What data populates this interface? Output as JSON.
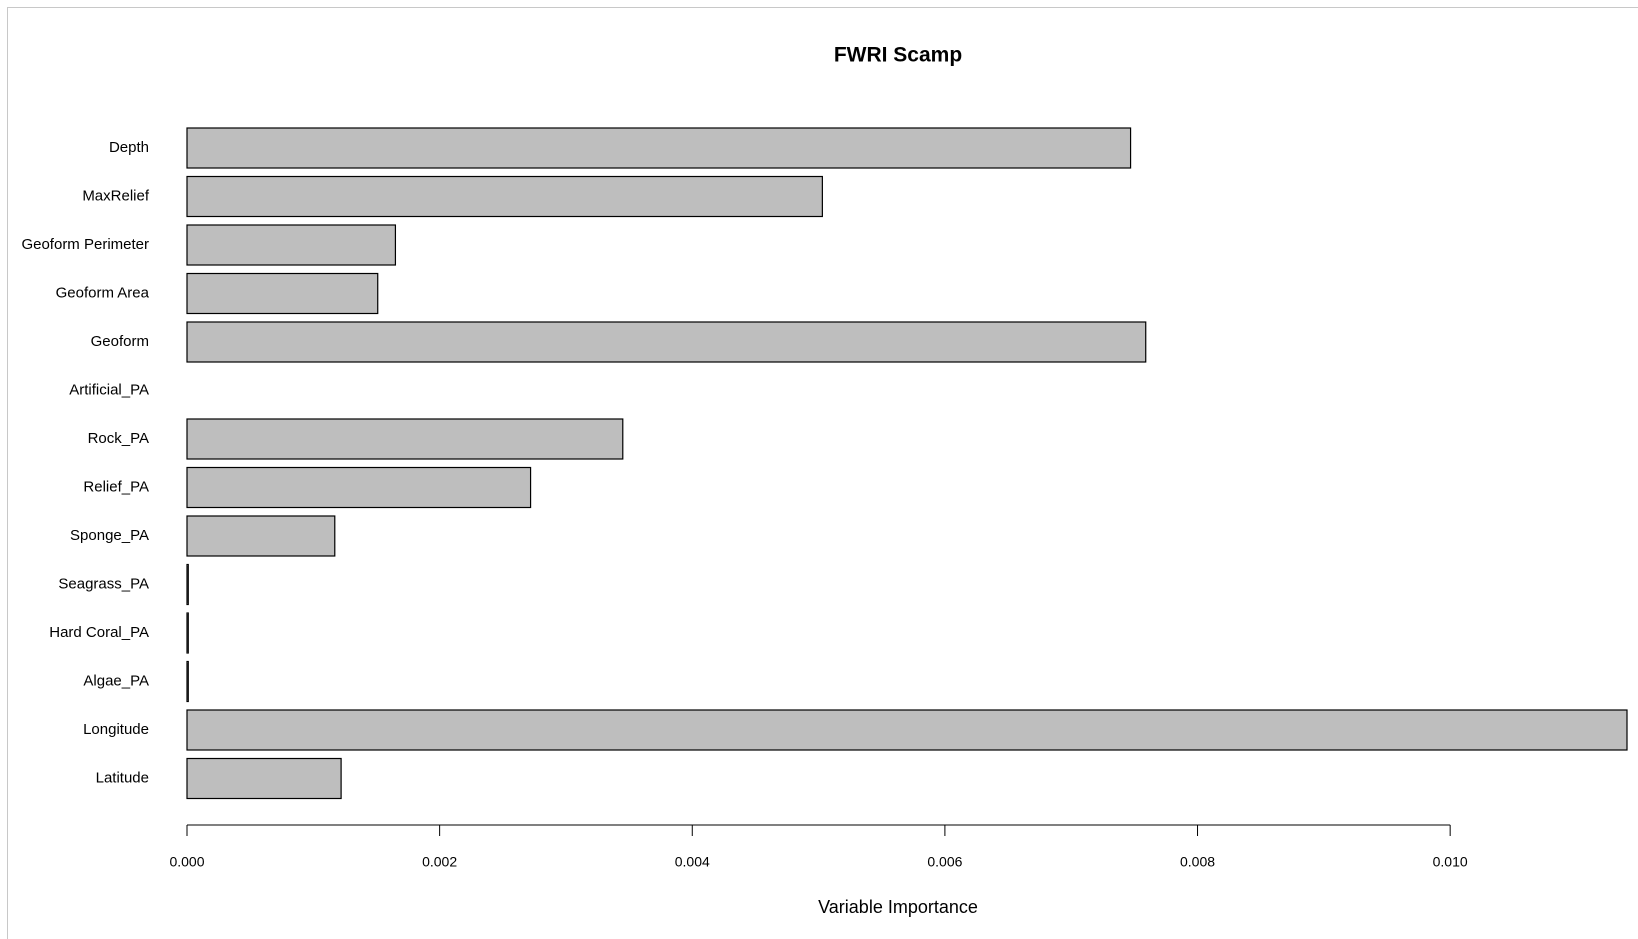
{
  "chart_data": {
    "type": "barh",
    "title": "FWRI Scamp",
    "x_label": "Variable Importance",
    "categories": [
      "Depth",
      "MaxRelief",
      "Geoform Perimeter",
      "Geoform Area",
      "Geoform",
      "Artificial_PA",
      "Rock_PA",
      "Relief_PA",
      "Sponge_PA",
      "Seagrass_PA",
      "Hard Coral_PA",
      "Algae_PA",
      "Longitude",
      "Latitude"
    ],
    "values": [
      0.00747,
      0.00503,
      0.00165,
      0.00151,
      0.00759,
      0,
      0.00345,
      0.00272,
      0.00117,
      1e-05,
      1e-05,
      1e-05,
      0.0114,
      0.00122
    ],
    "color": "#bebebe",
    "xlim": [
      0,
      0.0114
    ],
    "xticks": [
      {
        "value": 0,
        "label": "0.000"
      },
      {
        "value": 0.002,
        "label": "0.002"
      },
      {
        "value": 0.004,
        "label": "0.004"
      },
      {
        "value": 0.006,
        "label": "0.006"
      },
      {
        "value": 0.008,
        "label": "0.008"
      },
      {
        "value": 0.01,
        "label": "0.010"
      }
    ]
  }
}
